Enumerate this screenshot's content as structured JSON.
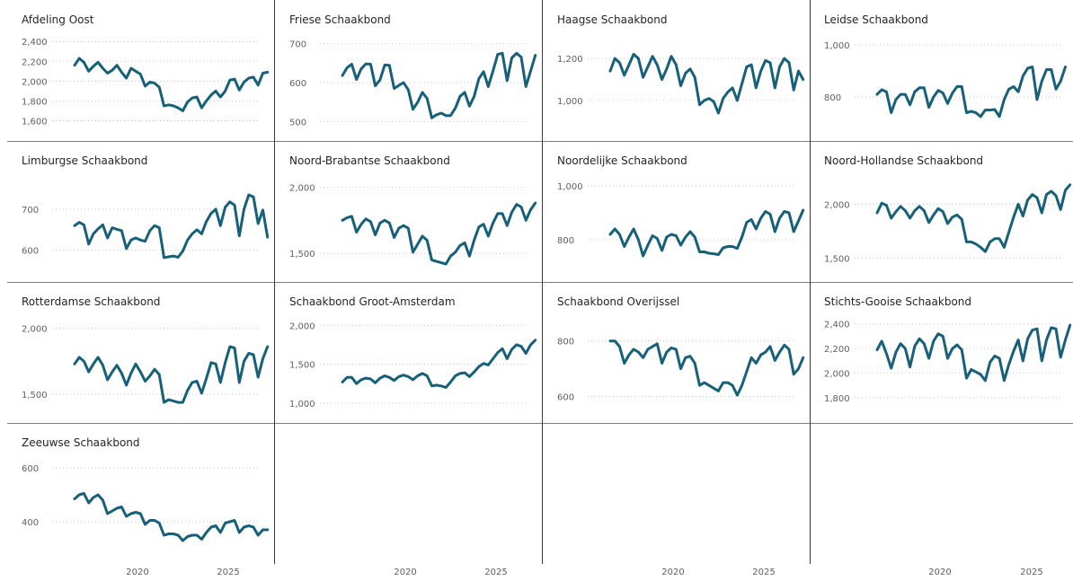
{
  "x_ticks": [
    "2020",
    "2025"
  ],
  "chart_data": [
    {
      "type": "line",
      "title": "Afdeling Oost",
      "yticks": [
        "2,400",
        "2,200",
        "2,000",
        "1,800",
        "1,600"
      ],
      "ytick_values": [
        2400,
        2200,
        2000,
        1800,
        1600
      ],
      "ylim": [
        1550,
        2420
      ],
      "x_start": 2017.0,
      "x_step": 0.25,
      "series": [
        {
          "values": [
            2160,
            2230,
            2190,
            2100,
            2150,
            2190,
            2130,
            2080,
            2110,
            2160,
            2090,
            2030,
            2130,
            2100,
            2070,
            1950,
            1990,
            1980,
            1940,
            1750,
            1760,
            1750,
            1730,
            1700,
            1790,
            1830,
            1840,
            1730,
            1800,
            1860,
            1900,
            1840,
            1900,
            2010,
            2020,
            1910,
            1990,
            2030,
            2040,
            1960,
            2080,
            2090
          ]
        }
      ],
      "color": "#16607a"
    },
    {
      "type": "line",
      "title": "Friese Schaakbond",
      "yticks": [
        "700",
        "600",
        "500"
      ],
      "ytick_values": [
        700,
        600,
        500
      ],
      "ylim": [
        490,
        710
      ],
      "x_start": 2017.0,
      "x_step": 0.25,
      "series": [
        {
          "values": [
            618,
            638,
            647,
            608,
            635,
            648,
            647,
            592,
            607,
            645,
            644,
            585,
            593,
            600,
            582,
            532,
            550,
            575,
            560,
            510,
            518,
            522,
            516,
            516,
            535,
            565,
            575,
            540,
            565,
            610,
            628,
            590,
            630,
            672,
            675,
            605,
            663,
            675,
            665,
            590,
            630,
            670
          ]
        }
      ],
      "color": "#16607a"
    },
    {
      "type": "line",
      "title": "Haagse Schaakbond",
      "yticks": [
        "1,200",
        "1,000"
      ],
      "ytick_values": [
        1200,
        1000
      ],
      "ylim": [
        880,
        1290
      ],
      "x_start": 2017.0,
      "x_step": 0.25,
      "series": [
        {
          "values": [
            1140,
            1200,
            1180,
            1120,
            1170,
            1220,
            1200,
            1110,
            1160,
            1210,
            1170,
            1100,
            1150,
            1210,
            1170,
            1070,
            1130,
            1150,
            1110,
            980,
            1000,
            1010,
            995,
            940,
            1010,
            1040,
            1060,
            1000,
            1080,
            1160,
            1170,
            1060,
            1140,
            1190,
            1180,
            1060,
            1160,
            1200,
            1180,
            1050,
            1140,
            1100
          ]
        }
      ],
      "color": "#16607a"
    },
    {
      "type": "line",
      "title": "Leidse Schaakbond",
      "yticks": [
        "1,000",
        "800"
      ],
      "ytick_values": [
        1000,
        800
      ],
      "ylim": [
        690,
        1020
      ],
      "x_start": 2017.0,
      "x_step": 0.25,
      "series": [
        {
          "values": [
            810,
            828,
            820,
            740,
            790,
            810,
            810,
            770,
            820,
            835,
            835,
            760,
            800,
            825,
            815,
            775,
            815,
            840,
            840,
            740,
            745,
            740,
            725,
            750,
            750,
            752,
            725,
            790,
            830,
            840,
            820,
            880,
            910,
            915,
            790,
            860,
            905,
            905,
            830,
            860,
            915
          ]
        }
      ],
      "color": "#16607a"
    },
    {
      "type": "line",
      "title": "Limburgse Schaakbond",
      "yticks": [
        "700",
        "600"
      ],
      "ytick_values": [
        700,
        600
      ],
      "ylim": [
        560,
        770
      ],
      "x_start": 2017.0,
      "x_step": 0.25,
      "series": [
        {
          "values": [
            660,
            668,
            662,
            615,
            640,
            652,
            662,
            630,
            655,
            651,
            648,
            604,
            625,
            630,
            625,
            622,
            648,
            660,
            655,
            582,
            584,
            586,
            583,
            598,
            625,
            640,
            650,
            640,
            670,
            690,
            700,
            660,
            705,
            718,
            710,
            635,
            700,
            735,
            730,
            665,
            698,
            632
          ]
        }
      ],
      "color": "#16607a"
    },
    {
      "type": "line",
      "title": "Noord-Brabantse Schaakbond",
      "yticks": [
        "2,000",
        "1,500"
      ],
      "ytick_values": [
        2000,
        1500
      ],
      "ylim": [
        1400,
        2050
      ],
      "x_start": 2017.0,
      "x_step": 0.25,
      "series": [
        {
          "values": [
            1750,
            1770,
            1780,
            1660,
            1720,
            1760,
            1740,
            1640,
            1730,
            1750,
            1730,
            1620,
            1690,
            1710,
            1690,
            1510,
            1570,
            1630,
            1600,
            1450,
            1440,
            1430,
            1420,
            1480,
            1510,
            1560,
            1580,
            1480,
            1600,
            1700,
            1720,
            1630,
            1730,
            1800,
            1800,
            1710,
            1810,
            1870,
            1850,
            1750,
            1830,
            1880
          ]
        }
      ],
      "color": "#16607a"
    },
    {
      "type": "line",
      "title": "Noordelijke Schaakbond",
      "yticks": [
        "1,000",
        "800"
      ],
      "ytick_values": [
        1000,
        800
      ],
      "ylim": [
        700,
        1020
      ],
      "x_start": 2017.0,
      "x_step": 0.25,
      "series": [
        {
          "values": [
            820,
            840,
            820,
            775,
            810,
            840,
            800,
            740,
            780,
            815,
            805,
            760,
            810,
            820,
            815,
            780,
            810,
            830,
            810,
            755,
            755,
            750,
            748,
            745,
            770,
            775,
            775,
            768,
            810,
            865,
            875,
            840,
            880,
            905,
            895,
            830,
            880,
            905,
            900,
            830,
            870,
            910
          ]
        }
      ],
      "color": "#16607a"
    },
    {
      "type": "line",
      "title": "Noord-Hollandse Schaakbond",
      "yticks": [
        "2,000",
        "1,500"
      ],
      "ytick_values": [
        2000,
        1500
      ],
      "ylim": [
        1420,
        2220
      ],
      "x_start": 2017.0,
      "x_step": 0.25,
      "series": [
        {
          "values": [
            1920,
            2010,
            1990,
            1870,
            1930,
            1980,
            1940,
            1870,
            1940,
            1980,
            1940,
            1830,
            1900,
            1960,
            1930,
            1820,
            1880,
            1900,
            1860,
            1650,
            1650,
            1630,
            1600,
            1560,
            1650,
            1680,
            1680,
            1600,
            1740,
            1880,
            2000,
            1890,
            2040,
            2090,
            2060,
            1920,
            2090,
            2120,
            2080,
            1950,
            2130,
            2180
          ]
        }
      ],
      "color": "#16607a"
    },
    {
      "type": "line",
      "title": "Rotterdamse Schaakbond",
      "yticks": [
        "2,000",
        "1,500"
      ],
      "ytick_values": [
        2000,
        1500
      ],
      "ylim": [
        1400,
        2050
      ],
      "x_start": 2017.0,
      "x_step": 0.25,
      "series": [
        {
          "values": [
            1730,
            1780,
            1750,
            1670,
            1730,
            1780,
            1720,
            1610,
            1670,
            1720,
            1660,
            1570,
            1660,
            1730,
            1670,
            1600,
            1640,
            1690,
            1650,
            1440,
            1460,
            1450,
            1440,
            1440,
            1530,
            1590,
            1600,
            1510,
            1620,
            1740,
            1730,
            1590,
            1740,
            1860,
            1850,
            1590,
            1750,
            1810,
            1800,
            1630,
            1770,
            1860
          ]
        }
      ],
      "color": "#16607a"
    },
    {
      "type": "line",
      "title": "Schaakbond Groot-Amsterdam",
      "yticks": [
        "2,000",
        "1,500",
        "1,000"
      ],
      "ytick_values": [
        2000,
        1500,
        1000
      ],
      "ylim": [
        940,
        2050
      ],
      "x_start": 2017.0,
      "x_step": 0.25,
      "series": [
        {
          "values": [
            1270,
            1330,
            1330,
            1250,
            1300,
            1320,
            1310,
            1260,
            1320,
            1350,
            1330,
            1290,
            1340,
            1360,
            1340,
            1300,
            1350,
            1380,
            1350,
            1220,
            1230,
            1220,
            1200,
            1270,
            1350,
            1380,
            1390,
            1340,
            1400,
            1470,
            1510,
            1490,
            1570,
            1650,
            1700,
            1570,
            1690,
            1750,
            1730,
            1640,
            1750,
            1810
          ]
        }
      ],
      "color": "#16607a"
    },
    {
      "type": "line",
      "title": "Schaakbond Overijssel",
      "yticks": [
        "800",
        "600"
      ],
      "ytick_values": [
        800,
        600
      ],
      "ylim": [
        560,
        870
      ],
      "x_start": 2017.0,
      "x_step": 0.25,
      "series": [
        {
          "values": [
            800,
            800,
            780,
            720,
            750,
            770,
            760,
            740,
            770,
            780,
            790,
            720,
            760,
            775,
            770,
            700,
            740,
            745,
            720,
            640,
            650,
            640,
            630,
            620,
            650,
            650,
            640,
            605,
            640,
            690,
            740,
            720,
            750,
            760,
            780,
            730,
            760,
            785,
            770,
            680,
            700,
            740
          ]
        }
      ],
      "color": "#16607a"
    },
    {
      "type": "line",
      "title": "Stichts-Gooise Schaakbond",
      "yticks": [
        "2,400",
        "2,200",
        "2,000",
        "1,800"
      ],
      "ytick_values": [
        2400,
        2200,
        2000,
        1800
      ],
      "ylim": [
        1720,
        2420
      ],
      "x_start": 2017.0,
      "x_step": 0.25,
      "series": [
        {
          "values": [
            2190,
            2260,
            2160,
            2040,
            2170,
            2240,
            2200,
            2050,
            2220,
            2280,
            2240,
            2120,
            2260,
            2320,
            2300,
            2120,
            2200,
            2230,
            2190,
            1960,
            2030,
            2010,
            1990,
            1940,
            2090,
            2140,
            2120,
            1940,
            2070,
            2180,
            2270,
            2100,
            2280,
            2350,
            2360,
            2100,
            2270,
            2370,
            2360,
            2130,
            2270,
            2390
          ]
        }
      ],
      "color": "#16607a"
    },
    {
      "type": "line",
      "title": "Zeeuwse Schaakbond",
      "yticks": [
        "600",
        "400"
      ],
      "ytick_values": [
        600,
        400
      ],
      "ylim": [
        300,
        620
      ],
      "x_start": 2017.0,
      "x_step": 0.25,
      "series": [
        {
          "values": [
            485,
            500,
            505,
            470,
            490,
            500,
            480,
            430,
            440,
            450,
            455,
            420,
            430,
            435,
            430,
            390,
            405,
            405,
            395,
            350,
            355,
            355,
            350,
            330,
            345,
            350,
            350,
            335,
            360,
            380,
            385,
            360,
            395,
            400,
            405,
            360,
            380,
            385,
            380,
            350,
            370,
            370
          ]
        }
      ],
      "color": "#16607a"
    }
  ]
}
